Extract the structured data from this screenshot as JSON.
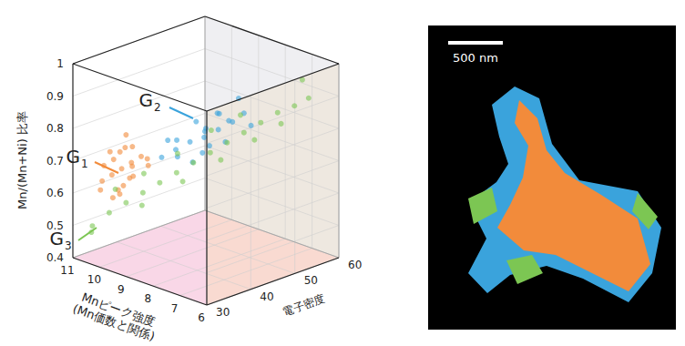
{
  "chart_data": {
    "type": "scatter3d",
    "x_label": "Mnピーク強度\n(Mn価数と関係)",
    "y_label": "電子密度",
    "z_label": "Mn/(Mn+Ni) 比率",
    "xlim": [
      11,
      6
    ],
    "xticks": [
      11,
      10,
      9,
      8,
      7,
      6
    ],
    "ylim": [
      30,
      60
    ],
    "yticks": [
      30,
      40,
      50,
      60
    ],
    "zlim": [
      0.4,
      1
    ],
    "zticks": [
      0.4,
      0.5,
      0.6,
      0.7,
      0.8,
      0.9,
      1
    ],
    "grid": true,
    "marker": "circle",
    "series": [
      {
        "name": "G1",
        "color": "#f28b3b",
        "values": [
          [
            10.2,
            34,
            0.66
          ],
          [
            10.0,
            35,
            0.68
          ],
          [
            9.8,
            36,
            0.7
          ],
          [
            10.4,
            33,
            0.64
          ],
          [
            9.6,
            37,
            0.72
          ],
          [
            10.1,
            36,
            0.62
          ],
          [
            9.9,
            34,
            0.74
          ],
          [
            10.3,
            35,
            0.7
          ],
          [
            9.7,
            35,
            0.66
          ],
          [
            10.5,
            34,
            0.68
          ],
          [
            9.5,
            38,
            0.69
          ],
          [
            10.0,
            33,
            0.6
          ],
          [
            9.9,
            37,
            0.65
          ],
          [
            10.2,
            37,
            0.73
          ],
          [
            9.8,
            33,
            0.63
          ],
          [
            10.6,
            36,
            0.71
          ],
          [
            9.6,
            35,
            0.76
          ],
          [
            10.1,
            38,
            0.67
          ],
          [
            10.3,
            32,
            0.62
          ],
          [
            9.7,
            39,
            0.7
          ],
          [
            10.0,
            36,
            0.78
          ],
          [
            10.4,
            37,
            0.58
          ]
        ]
      },
      {
        "name": "G2",
        "color": "#3aa3dc",
        "values": [
          [
            8.8,
            40,
            0.75
          ],
          [
            8.6,
            42,
            0.77
          ],
          [
            8.4,
            44,
            0.78
          ],
          [
            8.2,
            46,
            0.8
          ],
          [
            8.0,
            48,
            0.82
          ],
          [
            8.9,
            41,
            0.72
          ],
          [
            8.5,
            45,
            0.8
          ],
          [
            8.3,
            43,
            0.74
          ],
          [
            8.7,
            44,
            0.82
          ],
          [
            8.1,
            47,
            0.76
          ],
          [
            7.9,
            50,
            0.84
          ],
          [
            8.6,
            39,
            0.79
          ],
          [
            8.4,
            47,
            0.84
          ],
          [
            9.0,
            38,
            0.73
          ],
          [
            8.2,
            44,
            0.76
          ],
          [
            7.8,
            51,
            0.8
          ],
          [
            8.5,
            42,
            0.71
          ],
          [
            8.0,
            45,
            0.86
          ],
          [
            8.7,
            46,
            0.78
          ],
          [
            8.3,
            49,
            0.81
          ],
          [
            9.1,
            40,
            0.77
          ],
          [
            8.1,
            50,
            0.88
          ]
        ]
      },
      {
        "name": "G3",
        "color": "#7cc653",
        "values": [
          [
            10.6,
            32,
            0.5
          ],
          [
            10.3,
            34,
            0.54
          ],
          [
            10.0,
            36,
            0.57
          ],
          [
            9.7,
            38,
            0.6
          ],
          [
            9.4,
            40,
            0.63
          ],
          [
            9.1,
            42,
            0.66
          ],
          [
            8.8,
            44,
            0.69
          ],
          [
            8.5,
            46,
            0.72
          ],
          [
            8.2,
            48,
            0.75
          ],
          [
            7.9,
            50,
            0.78
          ],
          [
            7.6,
            52,
            0.81
          ],
          [
            7.3,
            54,
            0.84
          ],
          [
            7.0,
            56,
            0.86
          ],
          [
            6.8,
            58,
            0.88
          ],
          [
            9.9,
            39,
            0.55
          ],
          [
            9.2,
            44,
            0.62
          ],
          [
            8.6,
            49,
            0.68
          ],
          [
            8.0,
            53,
            0.74
          ],
          [
            7.5,
            56,
            0.79
          ],
          [
            10.4,
            36,
            0.6
          ],
          [
            9.5,
            37,
            0.67
          ],
          [
            8.9,
            41,
            0.73
          ],
          [
            8.3,
            45,
            0.8
          ],
          [
            7.7,
            48,
            0.85
          ],
          [
            10.8,
            33,
            0.47
          ],
          [
            7.2,
            59,
            0.92
          ]
        ]
      }
    ]
  },
  "image": {
    "scale_bar": "500 nm"
  }
}
